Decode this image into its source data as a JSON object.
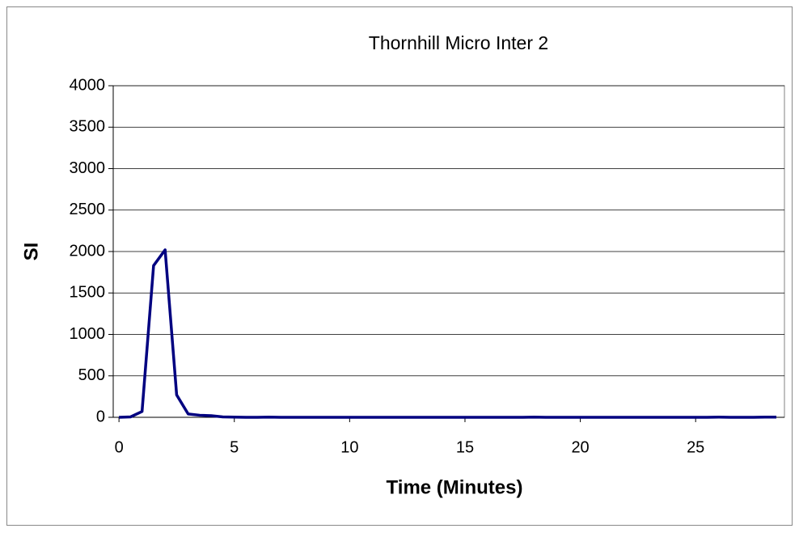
{
  "chart_data": {
    "type": "line",
    "title": "Thornhill Micro Inter 2",
    "x_label": "Time (Minutes)",
    "y_label": "SI",
    "x": [
      0,
      0.5,
      1,
      1.5,
      2,
      2.5,
      3,
      3.5,
      4,
      4.5,
      5,
      5.5,
      6,
      6.5,
      7,
      7.5,
      8,
      8.5,
      9,
      9.5,
      10,
      10.5,
      11,
      11.5,
      12,
      12.5,
      13,
      13.5,
      14,
      14.5,
      15,
      15.5,
      16,
      16.5,
      17,
      17.5,
      18,
      18.5,
      19,
      19.5,
      20,
      20.5,
      21,
      21.5,
      22,
      22.5,
      23,
      23.5,
      24,
      24.5,
      25,
      25.5,
      26,
      26.5,
      27,
      27.5,
      28,
      28.5
    ],
    "series": [
      {
        "name": "SI",
        "color": "#000080",
        "values": [
          0,
          5,
          70,
          1830,
          2020,
          270,
          40,
          25,
          20,
          5,
          2,
          0,
          0,
          3,
          0,
          0,
          0,
          0,
          0,
          0,
          0,
          0,
          0,
          0,
          0,
          0,
          0,
          0,
          0,
          0,
          0,
          0,
          0,
          0,
          0,
          0,
          2,
          0,
          0,
          0,
          0,
          0,
          0,
          0,
          0,
          0,
          0,
          0,
          0,
          0,
          0,
          0,
          3,
          0,
          0,
          0,
          2,
          2
        ]
      }
    ],
    "xlim": [
      -0.25,
      28.85
    ],
    "xticks": [
      0,
      5,
      10,
      15,
      20,
      25
    ],
    "ylim": [
      0,
      4000
    ],
    "yticks": [
      0,
      500,
      1000,
      1500,
      2000,
      2500,
      3000,
      3500,
      4000
    ],
    "grid": true
  }
}
